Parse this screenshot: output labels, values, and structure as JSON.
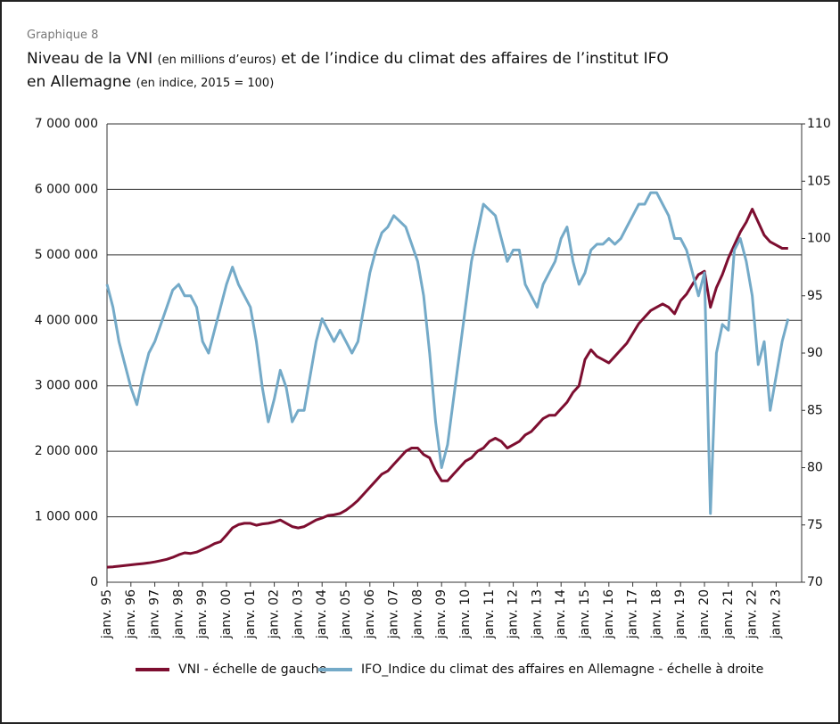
{
  "chart_data": {
    "type": "line",
    "subtitle": "Graphique 8",
    "title_parts": [
      "Niveau de la VNI ",
      "(en millions d’euros)",
      " et de l’indice du climat des affaires de l’institut IFO",
      "en Allemagne ",
      " (en indice, 2015 = 100)"
    ],
    "categories": [
      "janv. 95",
      null,
      null,
      null,
      "janv. 96",
      null,
      null,
      null,
      "janv. 97",
      null,
      null,
      null,
      "janv. 98",
      null,
      null,
      null,
      "janv. 99",
      null,
      null,
      null,
      "janv. 00",
      null,
      null,
      null,
      "janv. 01",
      null,
      null,
      null,
      "janv. 02",
      null,
      null,
      null,
      "janv. 03",
      null,
      null,
      null,
      "janv. 04",
      null,
      null,
      null,
      "janv. 05",
      null,
      null,
      null,
      "janv. 06",
      null,
      null,
      null,
      "janv. 07",
      null,
      null,
      null,
      "janv. 08",
      null,
      null,
      null,
      "janv. 09",
      null,
      null,
      null,
      "janv. 10",
      null,
      null,
      null,
      "janv. 11",
      null,
      null,
      null,
      "janv. 12",
      null,
      null,
      null,
      "janv. 13",
      null,
      null,
      null,
      "janv. 14",
      null,
      null,
      null,
      "janv. 15",
      null,
      null,
      null,
      "janv. 16",
      null,
      null,
      null,
      "janv. 17",
      null,
      null,
      null,
      "janv. 18",
      null,
      null,
      null,
      "janv. 19",
      null,
      null,
      null,
      "janv. 20",
      null,
      null,
      null,
      "janv. 21",
      null,
      null,
      null,
      "janv. 22",
      null,
      null,
      null,
      "janv. 23",
      null,
      null
    ],
    "series": [
      {
        "name": "VNI - échelle de gauche",
        "color": "#7d0e30",
        "axis": "y",
        "values": [
          230000,
          235000,
          245000,
          255000,
          265000,
          275000,
          285000,
          295000,
          310000,
          330000,
          350000,
          380000,
          420000,
          450000,
          440000,
          460000,
          500000,
          540000,
          590000,
          620000,
          720000,
          830000,
          880000,
          900000,
          900000,
          870000,
          890000,
          900000,
          920000,
          950000,
          900000,
          850000,
          830000,
          850000,
          900000,
          950000,
          980000,
          1020000,
          1030000,
          1050000,
          1100000,
          1170000,
          1250000,
          1350000,
          1450000,
          1550000,
          1650000,
          1700000,
          1800000,
          1900000,
          2000000,
          2050000,
          2050000,
          1950000,
          1900000,
          1700000,
          1550000,
          1550000,
          1650000,
          1750000,
          1850000,
          1900000,
          2000000,
          2050000,
          2150000,
          2200000,
          2150000,
          2050000,
          2100000,
          2150000,
          2250000,
          2300000,
          2400000,
          2500000,
          2550000,
          2550000,
          2650000,
          2750000,
          2900000,
          3000000,
          3400000,
          3550000,
          3450000,
          3400000,
          3350000,
          3450000,
          3550000,
          3650000,
          3800000,
          3950000,
          4050000,
          4150000,
          4200000,
          4250000,
          4200000,
          4100000,
          4300000,
          4400000,
          4550000,
          4700000,
          4750000,
          4200000,
          4500000,
          4700000,
          4950000,
          5150000,
          5350000,
          5500000,
          5700000,
          5500000,
          5300000,
          5200000,
          5150000,
          5100000,
          5100000
        ]
      },
      {
        "name": "IFO_Indice du climat des affaires en Allemagne - échelle à droite",
        "color": "#74aac8",
        "axis": "y2",
        "values": [
          96,
          94,
          91,
          89,
          87,
          85.5,
          88,
          90,
          91,
          92.5,
          94,
          95.5,
          96,
          95,
          95,
          94,
          91,
          90,
          92,
          94,
          96,
          97.5,
          96,
          95,
          94,
          91,
          87,
          84,
          86,
          88.5,
          87,
          84,
          85,
          85,
          88,
          91,
          93,
          92,
          91,
          92,
          91,
          90,
          91,
          94,
          97,
          99,
          100.5,
          101,
          102,
          101.5,
          101,
          99.5,
          98,
          95,
          90,
          84,
          80,
          82,
          86,
          90,
          94,
          98,
          100.5,
          103,
          102.5,
          102,
          100,
          98,
          99,
          99,
          96,
          95,
          94,
          96,
          97,
          98,
          100,
          101,
          98,
          96,
          97,
          99,
          99.5,
          99.5,
          100,
          99.5,
          100,
          101,
          102,
          103,
          103,
          104,
          104,
          103,
          102,
          100,
          100,
          99,
          97,
          95,
          97,
          76,
          90,
          92.5,
          92,
          99,
          100,
          98,
          95,
          89,
          91,
          85,
          88,
          91,
          93
        ]
      }
    ],
    "ylim": [
      0,
      7000000
    ],
    "yticks": [
      0,
      {
        "value": 1000000,
        "label": "1 000 000"
      },
      {
        "value": 2000000,
        "label": "2 000 000"
      },
      {
        "value": 3000000,
        "label": "3 000 000"
      },
      {
        "value": 4000000,
        "label": "4 000 000"
      },
      {
        "value": 5000000,
        "label": "5 000 000"
      },
      {
        "value": 6000000,
        "label": "6 000 000"
      },
      {
        "value": 7000000,
        "label": "7 000 000"
      }
    ],
    "y2lim": [
      70,
      110
    ],
    "y2ticks": [
      70,
      75,
      80,
      85,
      90,
      95,
      100,
      105,
      110
    ],
    "grid": true,
    "legend": "bottom"
  }
}
